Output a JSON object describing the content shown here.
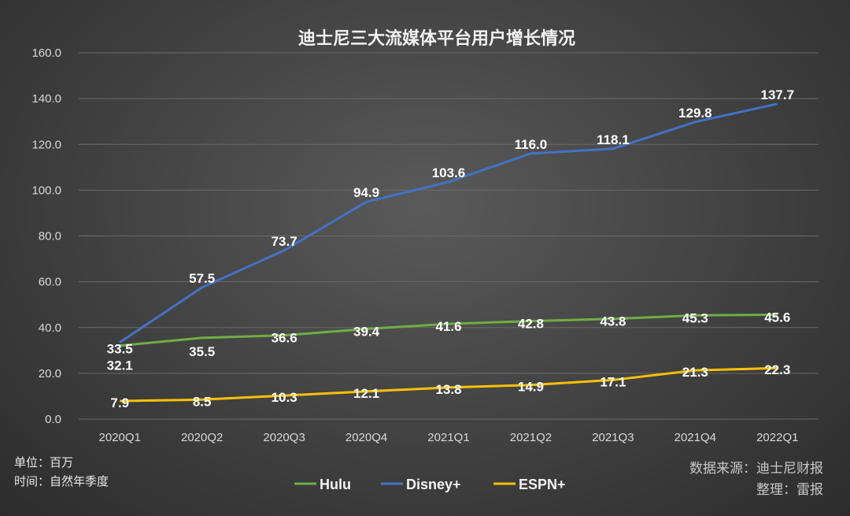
{
  "chart_data": {
    "type": "line",
    "title": "迪士尼三大流媒体平台用户增长情况",
    "categories": [
      "2020Q1",
      "2020Q2",
      "2020Q3",
      "2020Q4",
      "2021Q1",
      "2021Q2",
      "2021Q3",
      "2021Q4",
      "2022Q1"
    ],
    "ylim": [
      0,
      160
    ],
    "yticks": [
      "0.0",
      "20.0",
      "40.0",
      "60.0",
      "80.0",
      "100.0",
      "120.0",
      "140.0",
      "160.0"
    ],
    "grid": true,
    "legend_position": "bottom",
    "series": [
      {
        "name": "Hulu",
        "color": "#70ad47",
        "values": [
          32.1,
          35.5,
          36.6,
          39.4,
          41.6,
          42.8,
          43.8,
          45.3,
          45.6
        ],
        "labels": [
          "32.1",
          "35.5",
          "36.6",
          "39.4",
          "41.6",
          "42.8",
          "43.8",
          "45.3",
          "45.6"
        ]
      },
      {
        "name": "Disney+",
        "color": "#4472c4",
        "values": [
          33.5,
          57.5,
          73.7,
          94.9,
          103.6,
          116.0,
          118.1,
          129.8,
          137.7
        ],
        "labels": [
          "33.5",
          "57.5",
          "73.7",
          "94.9",
          "103.6",
          "116.0",
          "118.1",
          "129.8",
          "137.7"
        ]
      },
      {
        "name": "ESPN+",
        "color": "#ffc000",
        "values": [
          7.9,
          8.5,
          10.3,
          12.1,
          13.8,
          14.9,
          17.1,
          21.3,
          22.3
        ],
        "labels": [
          "7.9",
          "8.5",
          "10.3",
          "12.1",
          "13.8",
          "14.9",
          "17.1",
          "21.3",
          "22.3"
        ]
      }
    ]
  },
  "notes": {
    "unit": "单位：百万",
    "time": "时间：自然年季度"
  },
  "source": {
    "data_source": "数据来源：迪士尼财报",
    "compiled_by": "整理：雷报"
  }
}
